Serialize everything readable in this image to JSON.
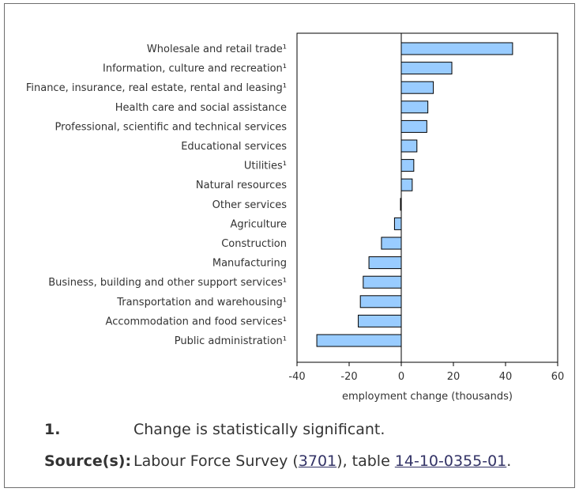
{
  "chart_data": {
    "type": "bar",
    "orientation": "horizontal",
    "categories": [
      "Wholesale and retail trade¹",
      "Information, culture and recreation¹",
      "Finance, insurance, real estate, rental and leasing¹",
      "Health care and social assistance",
      "Professional, scientific and technical services",
      "Educational services",
      "Utilities¹",
      "Natural resources",
      "Other services",
      "Agriculture",
      "Construction",
      "Manufacturing",
      "Business, building and other support services¹",
      "Transportation and warehousing¹",
      "Accommodation and food services¹",
      "Public administration¹"
    ],
    "values": [
      42.7,
      19.4,
      12.3,
      10.2,
      9.8,
      6.0,
      4.8,
      4.2,
      -0.3,
      -2.6,
      -7.6,
      -12.4,
      -14.6,
      -15.7,
      -16.5,
      -32.4
    ],
    "xlabel": "employment change (thousands)",
    "xlim": [
      -40,
      60
    ],
    "xticks": [
      "-40",
      "-20",
      "0",
      "20",
      "40",
      "60"
    ],
    "bar_color": "#99ccff",
    "bar_stroke": "#000000",
    "grid": false
  },
  "notes": {
    "footnote_key": "1.",
    "footnote_text": "Change is statistically significant.",
    "source_key": "Source(s):",
    "source_prefix": "Labour Force Survey (",
    "source_code": "3701",
    "source_middle": "), table ",
    "source_table": "14-10-0355-01",
    "source_suffix": "."
  }
}
